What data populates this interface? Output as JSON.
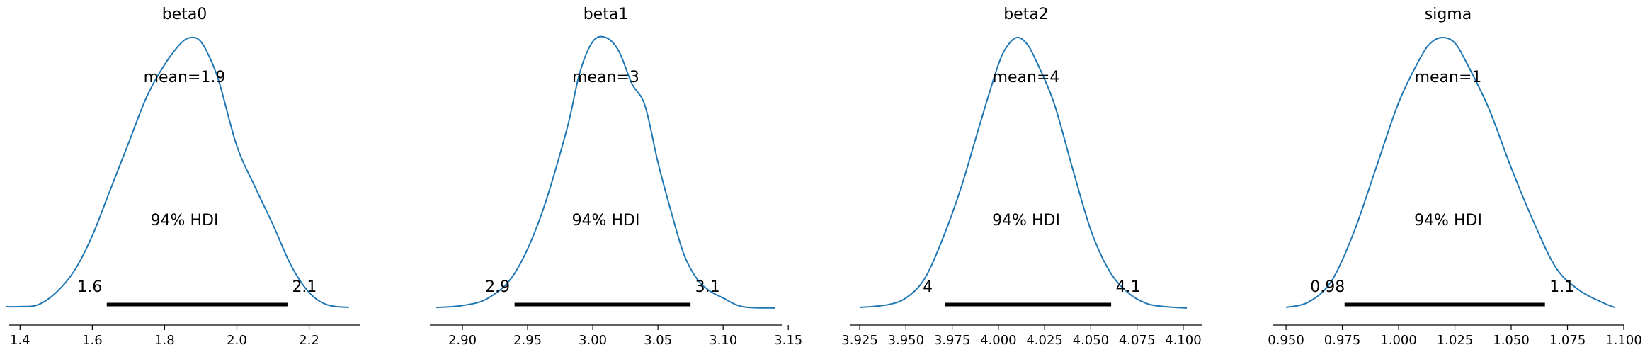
{
  "chart_data": [
    {
      "type": "line",
      "title": "beta0",
      "xlim": [
        1.37,
        2.34
      ],
      "x_ticks": [
        1.4,
        1.6,
        1.8,
        2.0,
        2.2
      ],
      "x_tick_labels": [
        "1.4",
        "1.6",
        "1.8",
        "2.0",
        "2.2"
      ],
      "mean_label": "mean=1.9",
      "hdi_label": "94% HDI",
      "hdi": [
        1.64,
        2.14
      ],
      "hdi_labels": [
        "1.6",
        "2.1"
      ],
      "color": "#1f77b4",
      "density": {
        "x": [
          1.36,
          1.4,
          1.45,
          1.5,
          1.55,
          1.6,
          1.65,
          1.7,
          1.75,
          1.8,
          1.85,
          1.88,
          1.9,
          1.92,
          1.95,
          2.0,
          2.05,
          2.1,
          2.15,
          2.2,
          2.25,
          2.31
        ],
        "y": [
          0.008,
          0.008,
          0.015,
          0.06,
          0.14,
          0.27,
          0.44,
          0.61,
          0.78,
          0.9,
          0.985,
          1.0,
          0.985,
          0.94,
          0.84,
          0.6,
          0.45,
          0.31,
          0.16,
          0.06,
          0.015,
          0.005
        ]
      }
    },
    {
      "type": "line",
      "title": "beta1",
      "xlim": [
        2.875,
        3.145
      ],
      "x_ticks": [
        2.9,
        2.95,
        3.0,
        3.05,
        3.1,
        3.15
      ],
      "x_tick_labels": [
        "2.90",
        "2.95",
        "3.00",
        "3.05",
        "3.10",
        "3.15"
      ],
      "mean_label": "mean=3",
      "hdi_label": "94% HDI",
      "hdi": [
        2.94,
        3.075
      ],
      "hdi_labels": [
        "2.9",
        "3.1"
      ],
      "color": "#1f77b4",
      "density": {
        "x": [
          2.88,
          2.9,
          2.92,
          2.94,
          2.96,
          2.98,
          2.99,
          3.0,
          3.01,
          3.02,
          3.03,
          3.04,
          3.05,
          3.06,
          3.07,
          3.08,
          3.09,
          3.1,
          3.11,
          3.12,
          3.14
        ],
        "y": [
          0.005,
          0.012,
          0.04,
          0.13,
          0.34,
          0.66,
          0.87,
          0.985,
          1.0,
          0.95,
          0.83,
          0.75,
          0.54,
          0.36,
          0.2,
          0.11,
          0.065,
          0.04,
          0.015,
          0.005,
          0.003
        ]
      }
    },
    {
      "type": "line",
      "title": "beta2",
      "xlim": [
        3.92,
        4.11
      ],
      "x_ticks": [
        3.925,
        3.95,
        3.975,
        4.0,
        4.025,
        4.05,
        4.075,
        4.1
      ],
      "x_tick_labels": [
        "3.925",
        "3.950",
        "3.975",
        "4.000",
        "4.025",
        "4.050",
        "4.075",
        "4.100"
      ],
      "mean_label": "mean=4",
      "hdi_label": "94% HDI",
      "hdi": [
        3.971,
        4.061
      ],
      "hdi_labels": [
        "4",
        "4.1"
      ],
      "color": "#1f77b4",
      "density": {
        "x": [
          3.925,
          3.94,
          3.95,
          3.96,
          3.97,
          3.98,
          3.99,
          4.0,
          4.005,
          4.01,
          4.015,
          4.02,
          4.03,
          4.04,
          4.05,
          4.06,
          4.07,
          4.08,
          4.09,
          4.102
        ],
        "y": [
          0.005,
          0.015,
          0.04,
          0.11,
          0.26,
          0.45,
          0.68,
          0.9,
          0.97,
          1.0,
          0.98,
          0.92,
          0.76,
          0.52,
          0.29,
          0.14,
          0.06,
          0.02,
          0.008,
          0.003
        ]
      }
    },
    {
      "type": "line",
      "title": "sigma",
      "xlim": [
        0.944,
        1.1
      ],
      "x_ticks": [
        0.95,
        0.975,
        1.0,
        1.025,
        1.05,
        1.075,
        1.1
      ],
      "x_tick_labels": [
        "0.950",
        "0.975",
        "1.000",
        "1.025",
        "1.050",
        "1.075",
        "1.100"
      ],
      "mean_label": "mean=1",
      "hdi_label": "94% HDI",
      "hdi": [
        0.976,
        1.065
      ],
      "hdi_labels": [
        "0.98",
        "1.1"
      ],
      "color": "#1f77b4",
      "density": {
        "x": [
          0.95,
          0.96,
          0.97,
          0.98,
          0.99,
          1.0,
          1.01,
          1.015,
          1.02,
          1.025,
          1.03,
          1.04,
          1.05,
          1.06,
          1.07,
          1.08,
          1.09,
          1.096
        ],
        "y": [
          0.005,
          0.025,
          0.1,
          0.28,
          0.52,
          0.76,
          0.93,
          0.985,
          1.0,
          0.98,
          0.91,
          0.74,
          0.52,
          0.32,
          0.15,
          0.07,
          0.025,
          0.005
        ]
      }
    }
  ]
}
